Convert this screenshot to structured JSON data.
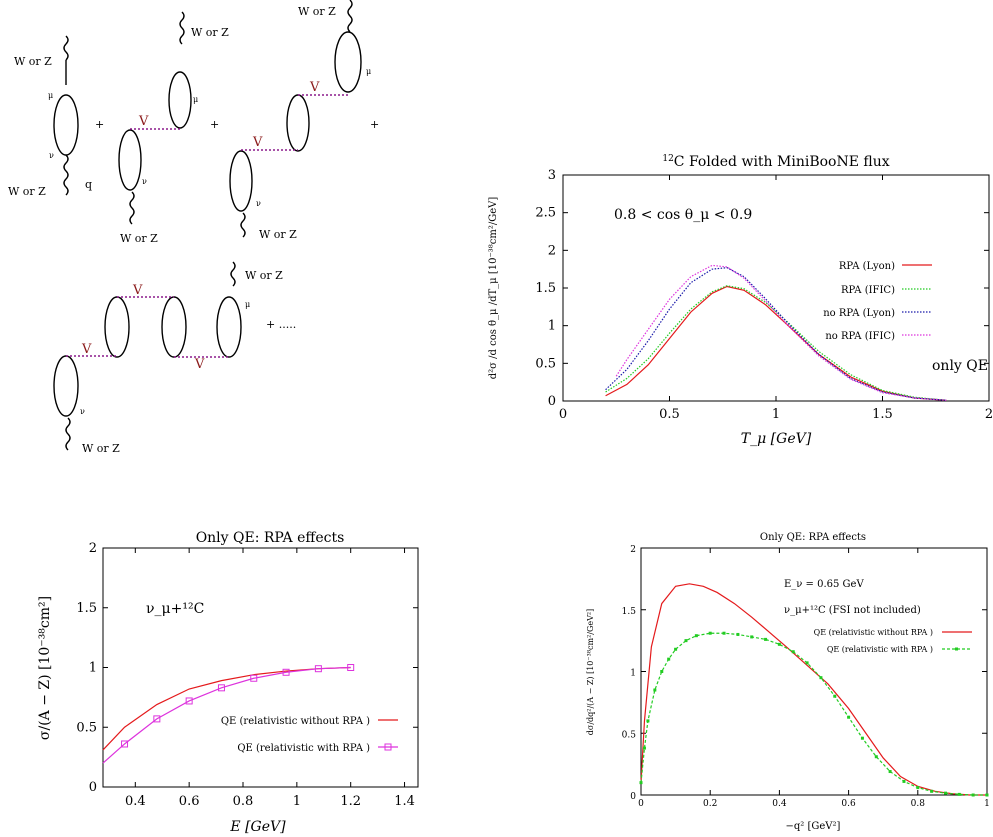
{
  "diagrams": {
    "boson_label": "W or Z",
    "mu_label": "μ",
    "nu_label": "ν",
    "q_label": "q",
    "interaction_label": "V",
    "plus": "+",
    "continuation": "+ ....."
  },
  "chart_data": [
    {
      "id": "tmu",
      "type": "line",
      "title": "12C Folded with MiniBooNE flux",
      "title_sup": "12",
      "title_rest": "C Folded with MiniBooNE flux",
      "xlabel": "T_μ [GeV]",
      "ylabel": "d²σ /d cos θ_μ /dT_μ [10⁻³⁸cm²/GeV]",
      "annotation": "0.8 < cos θ_μ < 0.9",
      "annotation2": "only QE",
      "xlim": [
        0,
        2
      ],
      "ylim": [
        0,
        3
      ],
      "xticks": [
        "0",
        "0.5",
        "1",
        "1.5",
        "2"
      ],
      "yticks": [
        "0",
        "0.5",
        "1",
        "1.5",
        "2",
        "2.5",
        "3"
      ],
      "legend": "upper-right",
      "series": [
        {
          "name": "RPA (Lyon)",
          "color": "#e41a1c",
          "style": "solid",
          "x": [
            0.2,
            0.3,
            0.4,
            0.5,
            0.6,
            0.7,
            0.77,
            0.85,
            0.95,
            1.05,
            1.2,
            1.35,
            1.5,
            1.65,
            1.8
          ],
          "y": [
            0.07,
            0.22,
            0.48,
            0.83,
            1.18,
            1.43,
            1.52,
            1.47,
            1.28,
            1.02,
            0.62,
            0.32,
            0.13,
            0.04,
            0.01
          ]
        },
        {
          "name": "RPA (IFIC)",
          "color": "#22cc22",
          "style": "dotted",
          "x": [
            0.2,
            0.3,
            0.4,
            0.5,
            0.6,
            0.7,
            0.77,
            0.85,
            0.95,
            1.05,
            1.2,
            1.35,
            1.5,
            1.65,
            1.8
          ],
          "y": [
            0.12,
            0.3,
            0.56,
            0.9,
            1.22,
            1.45,
            1.53,
            1.49,
            1.31,
            1.06,
            0.66,
            0.35,
            0.14,
            0.05,
            0.01
          ]
        },
        {
          "name": "no RPA (Lyon)",
          "color": "#1a1aaa",
          "style": "dotted",
          "x": [
            0.2,
            0.3,
            0.4,
            0.5,
            0.6,
            0.7,
            0.77,
            0.85,
            0.95,
            1.05,
            1.2,
            1.35,
            1.5,
            1.65,
            1.8
          ],
          "y": [
            0.15,
            0.42,
            0.8,
            1.22,
            1.57,
            1.75,
            1.77,
            1.65,
            1.36,
            1.05,
            0.62,
            0.3,
            0.12,
            0.04,
            0.01
          ]
        },
        {
          "name": "no RPA (IFIC)",
          "color": "#dd33dd",
          "style": "dotted",
          "x": [
            0.25,
            0.3,
            0.4,
            0.5,
            0.6,
            0.7,
            0.77,
            0.85,
            0.95,
            1.05,
            1.2,
            1.35,
            1.5,
            1.65,
            1.8
          ],
          "y": [
            0.33,
            0.55,
            0.95,
            1.35,
            1.65,
            1.8,
            1.78,
            1.63,
            1.33,
            1.02,
            0.6,
            0.29,
            0.11,
            0.04,
            0.01
          ]
        }
      ]
    },
    {
      "id": "sigmaE",
      "type": "line",
      "title": "Only QE: RPA effects",
      "xlabel": "E [GeV]",
      "ylabel": "σ/(A − Z) [10⁻³⁸cm²]",
      "annotation": "ν_μ+¹²C",
      "xlim": [
        0.28,
        1.45
      ],
      "ylim": [
        0,
        2
      ],
      "xticks": [
        "0.4",
        "0.6",
        "0.8",
        "1",
        "1.2",
        "1.4"
      ],
      "yticks": [
        "0",
        "0.5",
        "1",
        "1.5",
        "2"
      ],
      "legend": "lower-right",
      "series": [
        {
          "name": "QE (relativistic without RPA )",
          "color": "#e41a1c",
          "style": "solid",
          "x": [
            0.28,
            0.36,
            0.48,
            0.6,
            0.72,
            0.84,
            0.96,
            1.08,
            1.2
          ],
          "y": [
            0.31,
            0.5,
            0.69,
            0.82,
            0.89,
            0.94,
            0.97,
            0.99,
            1.0
          ]
        },
        {
          "name": "QE (relativistic with RPA )",
          "color": "#dd33dd",
          "style": "solid",
          "marker": "square",
          "x": [
            0.28,
            0.36,
            0.48,
            0.6,
            0.72,
            0.84,
            0.96,
            1.08,
            1.2
          ],
          "y": [
            0.2,
            0.36,
            0.57,
            0.72,
            0.83,
            0.91,
            0.96,
            0.99,
            1.0
          ]
        }
      ]
    },
    {
      "id": "dq2",
      "type": "line",
      "title": "Only QE: RPA effects",
      "xlabel": "−q² [GeV²]",
      "ylabel": "dσ/dq²/(A − Z) [10⁻³⁸cm²/GeV²]",
      "annotation": "E_ν = 0.65 GeV",
      "annotation2": "ν_μ+¹²C (FSI not included)",
      "xlim": [
        0,
        1
      ],
      "ylim": [
        0,
        2
      ],
      "xticks": [
        "0",
        "0.2",
        "0.4",
        "0.6",
        "0.8",
        "1"
      ],
      "yticks": [
        "0",
        "0.5",
        "1",
        "1.5",
        "2"
      ],
      "legend": "upper-right",
      "series": [
        {
          "name": "QE (relativistic without RPA )",
          "color": "#e41a1c",
          "style": "solid",
          "x": [
            0,
            0.01,
            0.03,
            0.06,
            0.1,
            0.14,
            0.18,
            0.22,
            0.27,
            0.32,
            0.37,
            0.42,
            0.48,
            0.54,
            0.6,
            0.65,
            0.7,
            0.75,
            0.8,
            0.85,
            0.9,
            0.95,
            1.0
          ],
          "y": [
            0.1,
            0.6,
            1.2,
            1.55,
            1.69,
            1.71,
            1.69,
            1.64,
            1.55,
            1.44,
            1.32,
            1.2,
            1.05,
            0.9,
            0.7,
            0.5,
            0.3,
            0.15,
            0.07,
            0.03,
            0.01,
            0.0,
            0.0
          ]
        },
        {
          "name": "QE (relativistic with RPA )",
          "color": "#22cc22",
          "style": "dashed",
          "marker": "dot",
          "x": [
            0,
            0.01,
            0.02,
            0.04,
            0.06,
            0.08,
            0.1,
            0.13,
            0.16,
            0.2,
            0.24,
            0.28,
            0.32,
            0.36,
            0.4,
            0.44,
            0.48,
            0.52,
            0.56,
            0.6,
            0.64,
            0.68,
            0.72,
            0.76,
            0.8,
            0.84,
            0.88,
            0.92,
            0.96,
            1.0
          ],
          "y": [
            0.1,
            0.38,
            0.6,
            0.85,
            1.0,
            1.1,
            1.18,
            1.25,
            1.29,
            1.31,
            1.31,
            1.3,
            1.28,
            1.26,
            1.22,
            1.16,
            1.07,
            0.95,
            0.8,
            0.63,
            0.46,
            0.31,
            0.19,
            0.11,
            0.06,
            0.03,
            0.015,
            0.005,
            0.0,
            0.0
          ]
        }
      ]
    }
  ]
}
